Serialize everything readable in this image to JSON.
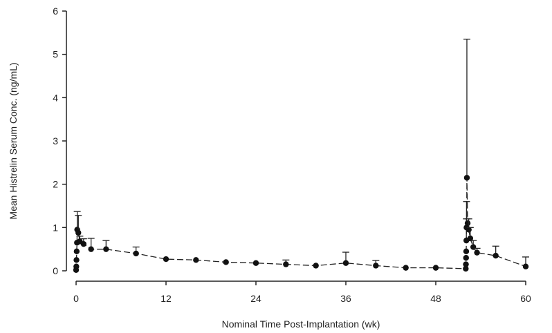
{
  "chart_data": {
    "type": "scatter",
    "title": "",
    "xlabel": "Nominal Time Post-Implantation (wk)",
    "ylabel": "Mean Histrelin Serum Conc. (ng/mL)",
    "xlim": [
      0,
      60
    ],
    "ylim": [
      0,
      6
    ],
    "xticks": [
      0,
      12,
      24,
      36,
      48,
      60
    ],
    "yticks": [
      0,
      1,
      2,
      3,
      4,
      5,
      6
    ],
    "grid": false,
    "legend": "none",
    "series": [
      {
        "marker": "filled-circle",
        "line": "dashed",
        "error_bars": "upper",
        "points": [
          {
            "x": 0.0,
            "y": 0.02,
            "err": 0.0
          },
          {
            "x": 0.03,
            "y": 0.1,
            "err": 0.0
          },
          {
            "x": 0.05,
            "y": 0.25,
            "err": 0.0
          },
          {
            "x": 0.08,
            "y": 0.45,
            "err": 0.0
          },
          {
            "x": 0.12,
            "y": 0.65,
            "err": 0.0
          },
          {
            "x": 0.15,
            "y": 0.95,
            "err": 0.42
          },
          {
            "x": 0.3,
            "y": 0.88,
            "err": 0.4
          },
          {
            "x": 0.5,
            "y": 0.68,
            "err": 0.12
          },
          {
            "x": 1.0,
            "y": 0.62,
            "err": 0.12
          },
          {
            "x": 2.0,
            "y": 0.5,
            "err": 0.25
          },
          {
            "x": 4.0,
            "y": 0.5,
            "err": 0.2
          },
          {
            "x": 8.0,
            "y": 0.4,
            "err": 0.15
          },
          {
            "x": 12.0,
            "y": 0.27,
            "err": 0.0
          },
          {
            "x": 16.0,
            "y": 0.25,
            "err": 0.0
          },
          {
            "x": 20.0,
            "y": 0.2,
            "err": 0.0
          },
          {
            "x": 24.0,
            "y": 0.18,
            "err": 0.0
          },
          {
            "x": 28.0,
            "y": 0.15,
            "err": 0.1
          },
          {
            "x": 32.0,
            "y": 0.12,
            "err": 0.0
          },
          {
            "x": 36.0,
            "y": 0.18,
            "err": 0.25
          },
          {
            "x": 40.0,
            "y": 0.12,
            "err": 0.12
          },
          {
            "x": 44.0,
            "y": 0.07,
            "err": 0.0
          },
          {
            "x": 48.0,
            "y": 0.07,
            "err": 0.0
          },
          {
            "x": 52.0,
            "y": 0.05,
            "err": 0.0
          },
          {
            "x": 52.02,
            "y": 0.15,
            "err": 0.0
          },
          {
            "x": 52.04,
            "y": 0.3,
            "err": 0.0
          },
          {
            "x": 52.06,
            "y": 0.45,
            "err": 0.0
          },
          {
            "x": 52.08,
            "y": 0.7,
            "err": 0.5
          },
          {
            "x": 52.1,
            "y": 1.0,
            "err": 0.6
          },
          {
            "x": 52.15,
            "y": 2.15,
            "err": 3.2
          },
          {
            "x": 52.25,
            "y": 1.1,
            "err": 0.0
          },
          {
            "x": 52.4,
            "y": 0.95,
            "err": 0.25
          },
          {
            "x": 52.6,
            "y": 0.75,
            "err": 0.25
          },
          {
            "x": 53.0,
            "y": 0.55,
            "err": 0.15
          },
          {
            "x": 53.5,
            "y": 0.42,
            "err": 0.1
          },
          {
            "x": 56.0,
            "y": 0.35,
            "err": 0.22
          },
          {
            "x": 60.0,
            "y": 0.1,
            "err": 0.22
          }
        ]
      }
    ]
  }
}
